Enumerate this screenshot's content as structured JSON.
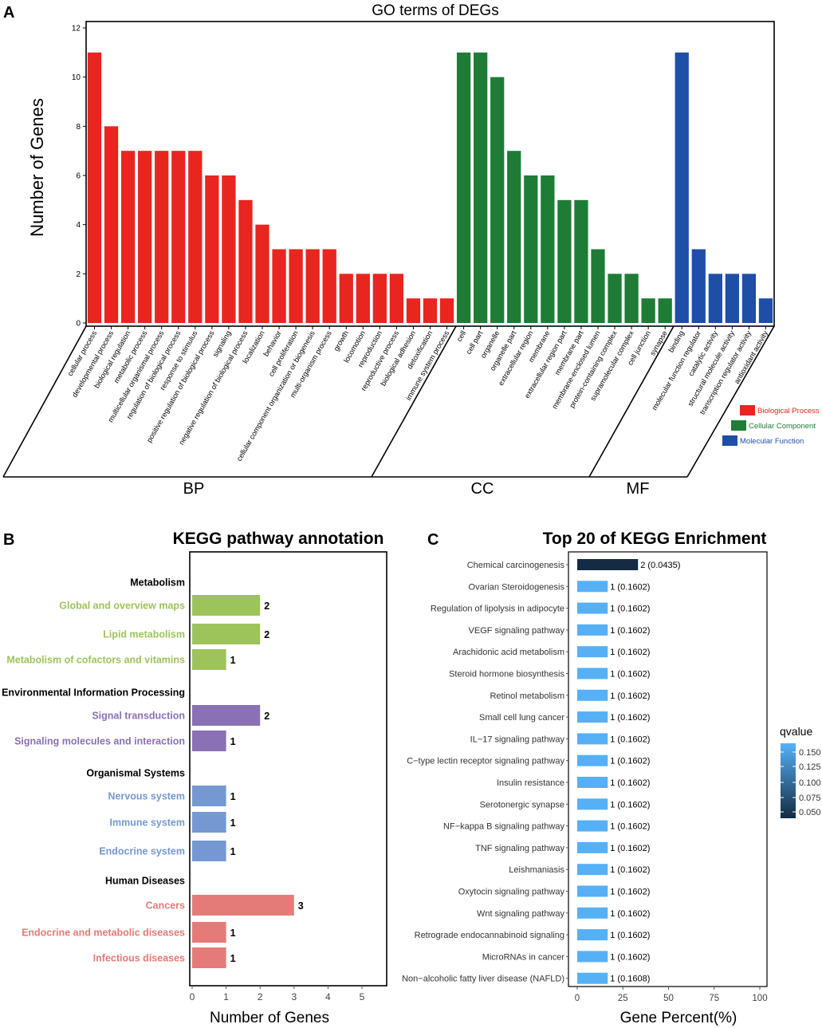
{
  "panels": {
    "A": "A",
    "B": "B",
    "C": "C"
  },
  "chart_data": [
    {
      "id": "go",
      "type": "bar",
      "title": "GO terms of DEGs",
      "ylabel": "Number of Genes",
      "xlabel": "",
      "ylim": [
        0,
        12
      ],
      "yticks": [
        0,
        2,
        4,
        6,
        8,
        10,
        12
      ],
      "grid": false,
      "legend_position": "right",
      "legend": [
        {
          "name": "Biological Process",
          "color": "#E8251F"
        },
        {
          "name": "Cellular Component",
          "color": "#1E7C36"
        },
        {
          "name": "Molecular Function",
          "color": "#1F4EA8"
        }
      ],
      "groups": [
        {
          "label": "BP",
          "color": "#E8251F",
          "categories": [
            "cellular process",
            "developmental process",
            "biological regulation",
            "metabolic process",
            "multicellular organismal process",
            "regulation of biological process",
            "response to stimulus",
            "positive regulation of biological process",
            "signaling",
            "negative regulation of biological process",
            "localization",
            "behavior",
            "cell proliferation",
            "cellular component organization or biogenesis",
            "multi-organism process",
            "growth",
            "locomotion",
            "reproduction",
            "reproductive process",
            "biological adhesion",
            "detoxification",
            "immune system process"
          ],
          "values": [
            11,
            8,
            7,
            7,
            7,
            7,
            7,
            6,
            6,
            5,
            4,
            3,
            3,
            3,
            3,
            2,
            2,
            2,
            2,
            1,
            1,
            1
          ]
        },
        {
          "label": "CC",
          "color": "#1E7C36",
          "categories": [
            "cell",
            "cell part",
            "organelle",
            "organelle part",
            "extracellular region",
            "membrane",
            "extracellular region part",
            "membrane part",
            "membrane-enclosed lumen",
            "protein-containing complex",
            "supramolecular complex",
            "cell junction",
            "synapse"
          ],
          "values": [
            11,
            11,
            10,
            7,
            6,
            6,
            5,
            5,
            3,
            2,
            2,
            1,
            1
          ]
        },
        {
          "label": "MF",
          "color": "#1F4EA8",
          "categories": [
            "binding",
            "molecular function regulator",
            "catalytic activity",
            "structural molecule activity",
            "transcription regulator activity",
            "antioxidant activity"
          ],
          "values": [
            11,
            3,
            2,
            2,
            2,
            1
          ]
        }
      ]
    },
    {
      "id": "kegg",
      "type": "bar",
      "orientation": "horizontal",
      "title": "KEGG pathway annotation",
      "xlabel": "Number of Genes",
      "ylabel": "",
      "xlim": [
        0,
        5.8
      ],
      "xticks": [
        0,
        1,
        2,
        3,
        4,
        5
      ],
      "grid": false,
      "groups": [
        {
          "label": "Metabolism",
          "color": "#9DC35B",
          "categories": [
            "Global and overview maps",
            "Lipid metabolism",
            "Metabolism of cofactors and vitamins"
          ],
          "values": [
            2,
            2,
            1
          ]
        },
        {
          "label": "Environmental Information Processing",
          "color": "#8A70B4",
          "categories": [
            "Signal transduction",
            "Signaling molecules and interaction"
          ],
          "values": [
            2,
            1
          ]
        },
        {
          "label": "Organismal Systems",
          "color": "#7498D2",
          "categories": [
            "Nervous system",
            "Immune system",
            "Endocrine system"
          ],
          "values": [
            1,
            1,
            1
          ]
        },
        {
          "label": "Human Diseases",
          "color": "#E47B79",
          "categories": [
            "Cancers",
            "Endocrine and metabolic diseases",
            "Infectious diseases"
          ],
          "values": [
            3,
            1,
            1
          ]
        }
      ]
    },
    {
      "id": "enrich",
      "type": "bar",
      "orientation": "horizontal",
      "title": "Top 20 of KEGG Enrichment",
      "xlabel": "Gene Percent(%)",
      "ylabel": "",
      "xlim": [
        -3,
        104
      ],
      "xticks": [
        0,
        25,
        50,
        75,
        100
      ],
      "grid": false,
      "legend_position": "right",
      "colorbar": {
        "title": "qvalue",
        "ticks": [
          "0.150",
          "0.125",
          "0.100",
          "0.075",
          "0.050"
        ],
        "color_low": "#132B43",
        "color_high": "#56B1F7"
      },
      "categories": [
        "Chemical carcinogenesis",
        "Ovarian Steroidogenesis",
        "Regulation of lipolysis in adipocyte",
        "VEGF signaling pathway",
        "Arachidonic acid metabolism",
        "Steroid hormone biosynthesis",
        "Retinol metabolism",
        "Small cell lung cancer",
        "IL−17 signaling pathway",
        "C−type lectin receptor signaling pathway",
        "Insulin resistance",
        "Serotonergic synapse",
        "NF−kappa B signaling pathway",
        "TNF signaling pathway",
        "Leishmaniasis",
        "Oxytocin signaling pathway",
        "Wnt signaling pathway",
        "Retrograde endocannabinoid signaling",
        "MicroRNAs in cancer",
        "Non−alcoholic fatty liver disease (NAFLD)"
      ],
      "values": [
        33.3,
        16.7,
        16.7,
        16.7,
        16.7,
        16.7,
        16.7,
        16.7,
        16.7,
        16.7,
        16.7,
        16.7,
        16.7,
        16.7,
        16.7,
        16.7,
        16.7,
        16.7,
        16.7,
        16.7
      ],
      "qvalues": [
        0.0435,
        0.1602,
        0.1602,
        0.1602,
        0.1602,
        0.1602,
        0.1602,
        0.1602,
        0.1602,
        0.1602,
        0.1602,
        0.1602,
        0.1602,
        0.1602,
        0.1602,
        0.1602,
        0.1602,
        0.1602,
        0.1602,
        0.1608
      ],
      "labels": [
        "2 (0.0435)",
        "1 (0.1602)",
        "1 (0.1602)",
        "1 (0.1602)",
        "1 (0.1602)",
        "1 (0.1602)",
        "1 (0.1602)",
        "1 (0.1602)",
        "1 (0.1602)",
        "1 (0.1602)",
        "1 (0.1602)",
        "1 (0.1602)",
        "1 (0.1602)",
        "1 (0.1602)",
        "1 (0.1602)",
        "1 (0.1602)",
        "1 (0.1602)",
        "1 (0.1602)",
        "1 (0.1602)",
        "1 (0.1608)"
      ]
    }
  ]
}
